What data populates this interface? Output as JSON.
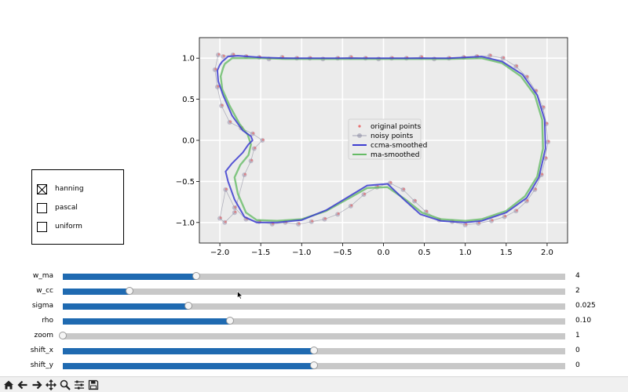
{
  "chart_data": {
    "type": "line",
    "title": "",
    "xlabel": "",
    "ylabel": "",
    "xlim": [
      -2.25,
      2.25
    ],
    "ylim": [
      -1.25,
      1.25
    ],
    "xticks": [
      "−2.0",
      "−1.5",
      "−1.0",
      "−0.5",
      "0.0",
      "0.5",
      "1.0",
      "1.5",
      "2.0"
    ],
    "yticks": [
      "1.0",
      "0.5",
      "0.0",
      "−0.5",
      "−1.0"
    ],
    "xtick_values": [
      -2.0,
      -1.5,
      -1.0,
      -0.5,
      0.0,
      0.5,
      1.0,
      1.5,
      2.0
    ],
    "ytick_values": [
      1.0,
      0.5,
      0.0,
      -0.5,
      -1.0
    ],
    "grid": true,
    "legend_position": "center",
    "legend": [
      {
        "label": "original points",
        "color": "#e87070",
        "marker": "dot"
      },
      {
        "label": "noisy points",
        "color": "#8888a0",
        "marker": "circle-line"
      },
      {
        "label": "ccma-smoothed",
        "color": "#3b3bd0",
        "marker": "line"
      },
      {
        "label": "ma-smoothed",
        "color": "#66bb66",
        "marker": "line"
      }
    ],
    "series": [
      {
        "name": "ccma-smoothed",
        "color": "#3b3bd0",
        "x": [
          -1.97,
          -1.9,
          -1.78,
          -1.65,
          -1.5,
          -1.2,
          -0.8,
          -0.4,
          0.0,
          0.4,
          0.8,
          1.2,
          1.45,
          1.7,
          1.88,
          1.97,
          1.98,
          1.9,
          1.75,
          1.5,
          1.2,
          1.0,
          0.7,
          0.45,
          0.25,
          0.05,
          -0.2,
          -0.45,
          -0.7,
          -1.0,
          -1.3,
          -1.55,
          -1.7,
          -1.82,
          -1.9,
          -1.93,
          -1.85,
          -1.72,
          -1.65,
          -1.6,
          -1.62,
          -1.72,
          -1.85,
          -1.96,
          -2.02,
          -2.03,
          -2.0,
          -1.97
        ],
        "y": [
          0.96,
          1.02,
          1.03,
          1.02,
          1.01,
          1.0,
          1.0,
          1.0,
          1.0,
          1.0,
          1.0,
          1.02,
          0.96,
          0.8,
          0.55,
          0.25,
          -0.1,
          -0.45,
          -0.7,
          -0.88,
          -0.98,
          -1.0,
          -0.98,
          -0.9,
          -0.72,
          -0.53,
          -0.55,
          -0.7,
          -0.85,
          -0.97,
          -1.0,
          -1.0,
          -0.93,
          -0.72,
          -0.5,
          -0.38,
          -0.28,
          -0.15,
          -0.05,
          0.0,
          0.05,
          0.12,
          0.3,
          0.55,
          0.72,
          0.85,
          0.92,
          0.96
        ]
      },
      {
        "name": "ma-smoothed",
        "color": "#66bb66",
        "x": [
          -1.94,
          -1.85,
          -1.7,
          -1.5,
          -1.2,
          -0.8,
          -0.4,
          0.0,
          0.4,
          0.8,
          1.2,
          1.45,
          1.68,
          1.85,
          1.94,
          1.95,
          1.88,
          1.73,
          1.5,
          1.2,
          1.0,
          0.7,
          0.47,
          0.27,
          0.05,
          -0.2,
          -0.45,
          -0.7,
          -1.0,
          -1.3,
          -1.55,
          -1.68,
          -1.78,
          -1.82,
          -1.75,
          -1.65,
          -1.62,
          -1.66,
          -1.76,
          -1.88,
          -1.97,
          -1.99,
          -1.96,
          -1.94
        ],
        "y": [
          0.93,
          1.0,
          1.0,
          1.0,
          0.99,
          0.99,
          0.99,
          0.99,
          0.99,
          0.99,
          1.0,
          0.94,
          0.78,
          0.55,
          0.25,
          -0.1,
          -0.44,
          -0.68,
          -0.86,
          -0.96,
          -0.98,
          -0.96,
          -0.88,
          -0.72,
          -0.57,
          -0.58,
          -0.72,
          -0.86,
          -0.96,
          -0.98,
          -0.97,
          -0.88,
          -0.65,
          -0.45,
          -0.3,
          -0.18,
          -0.05,
          0.07,
          0.2,
          0.42,
          0.62,
          0.78,
          0.88,
          0.93
        ]
      }
    ],
    "points": {
      "name": "noisy points",
      "x": [
        -1.96,
        -1.84,
        -1.68,
        -1.52,
        -1.4,
        -1.24,
        -1.06,
        -0.9,
        -0.74,
        -0.56,
        -0.4,
        -0.22,
        -0.06,
        0.1,
        0.28,
        0.46,
        0.62,
        0.8,
        0.98,
        1.14,
        1.3,
        1.46,
        1.62,
        1.75,
        1.86,
        1.95,
        1.99,
        2.01,
        1.98,
        1.93,
        1.85,
        1.75,
        1.62,
        1.48,
        1.32,
        1.16,
        1.0,
        0.84,
        0.68,
        0.52,
        0.38,
        0.24,
        0.08,
        -0.08,
        -0.24,
        -0.4,
        -0.56,
        -0.72,
        -0.88,
        -1.04,
        -1.2,
        -1.36,
        -1.52,
        -1.68,
        -1.82,
        -1.93,
        -2.0,
        -1.94,
        -1.82,
        -1.7,
        -1.62,
        -1.58,
        -1.48,
        -1.6,
        -1.74,
        -1.88,
        -1.98,
        -2.03,
        -2.06,
        -2.02
      ],
      "y": [
        1.02,
        1.04,
        1.02,
        1.01,
        0.99,
        1.01,
        1.0,
        1.0,
        0.99,
        1.0,
        1.01,
        1.0,
        0.99,
        1.0,
        1.0,
        1.01,
        0.99,
        1.0,
        1.01,
        1.02,
        1.03,
        1.0,
        0.9,
        0.77,
        0.6,
        0.4,
        0.2,
        -0.02,
        -0.22,
        -0.42,
        -0.6,
        -0.74,
        -0.86,
        -0.93,
        -0.98,
        -1.01,
        -1.03,
        -0.99,
        -0.97,
        -0.87,
        -0.74,
        -0.6,
        -0.52,
        -0.57,
        -0.66,
        -0.8,
        -0.9,
        -0.96,
        -0.99,
        -1.02,
        -1.0,
        -1.02,
        -0.99,
        -0.96,
        -0.82,
        -0.6,
        -0.95,
        -1.0,
        -0.88,
        -0.42,
        -0.25,
        -0.1,
        0.0,
        0.08,
        0.15,
        0.22,
        0.42,
        0.65,
        0.86,
        1.04
      ]
    }
  },
  "radio": {
    "options": [
      {
        "label": "hanning",
        "checked": true
      },
      {
        "label": "pascal",
        "checked": false
      },
      {
        "label": "uniform",
        "checked": false
      }
    ]
  },
  "sliders": [
    {
      "label": "w_ma",
      "value": "4",
      "fraction": 0.266
    },
    {
      "label": "w_cc",
      "value": "2",
      "fraction": 0.133
    },
    {
      "label": "sigma",
      "value": "0.025",
      "fraction": 0.25
    },
    {
      "label": "rho",
      "value": "0.10",
      "fraction": 0.333
    },
    {
      "label": "zoom",
      "value": "1",
      "fraction": 0.0
    },
    {
      "label": "shift_x",
      "value": "0",
      "fraction": 0.5
    },
    {
      "label": "shift_y",
      "value": "0",
      "fraction": 0.5
    }
  ],
  "toolbar": {
    "buttons": [
      "home-icon",
      "back-icon",
      "forward-icon",
      "pan-icon",
      "zoom-icon",
      "configure-icon",
      "save-icon"
    ]
  }
}
